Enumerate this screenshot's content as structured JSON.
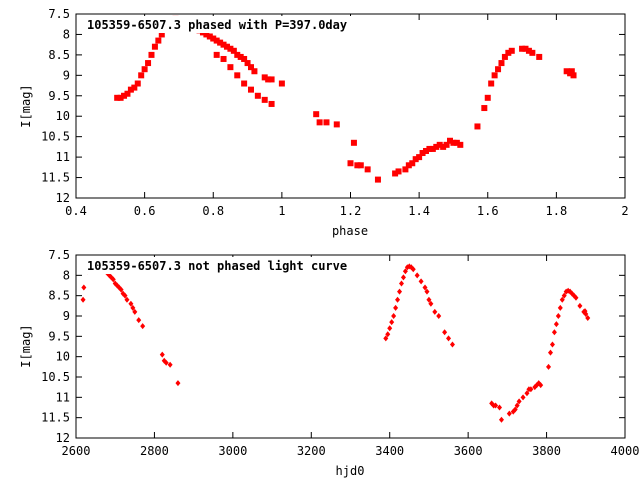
{
  "chart_data": [
    {
      "type": "scatter",
      "title": "105359-6507.3 phased with P=397.0day",
      "xlabel": "phase",
      "ylabel": "I[mag]",
      "xlim": [
        0.4,
        2.0
      ],
      "ylim": [
        12.0,
        7.5
      ],
      "y_inverted": true,
      "grid": false,
      "x_ticks": [
        "0.4",
        "0.6",
        "0.8",
        "1",
        "1.2",
        "1.4",
        "1.6",
        "1.8",
        "2"
      ],
      "y_ticks": [
        "7.5",
        "8",
        "8.5",
        "9",
        "9.5",
        "10",
        "10.5",
        "11",
        "11.5",
        "12"
      ],
      "marker_color": "#ff0000",
      "marker": "filled-square",
      "series": [
        {
          "points": [
            [
              0.52,
              9.55
            ],
            [
              0.53,
              9.55
            ],
            [
              0.54,
              9.5
            ],
            [
              0.55,
              9.45
            ],
            [
              0.56,
              9.35
            ],
            [
              0.57,
              9.3
            ],
            [
              0.58,
              9.2
            ],
            [
              0.59,
              9.0
            ],
            [
              0.6,
              8.85
            ],
            [
              0.61,
              8.7
            ],
            [
              0.62,
              8.5
            ],
            [
              0.63,
              8.3
            ],
            [
              0.64,
              8.15
            ],
            [
              0.65,
              8.0
            ],
            [
              0.66,
              7.85
            ],
            [
              0.67,
              7.75
            ],
            [
              0.68,
              7.65
            ],
            [
              0.69,
              7.62
            ],
            [
              0.7,
              7.63
            ],
            [
              0.71,
              7.65
            ],
            [
              0.72,
              7.7
            ],
            [
              0.73,
              7.75
            ],
            [
              0.74,
              7.8
            ],
            [
              0.75,
              7.85
            ],
            [
              0.76,
              7.9
            ],
            [
              0.77,
              7.95
            ],
            [
              0.78,
              8.0
            ],
            [
              0.79,
              8.05
            ],
            [
              0.8,
              8.1
            ],
            [
              0.81,
              8.15
            ],
            [
              0.82,
              8.2
            ],
            [
              0.83,
              8.25
            ],
            [
              0.84,
              8.3
            ],
            [
              0.85,
              8.35
            ],
            [
              0.86,
              8.4
            ],
            [
              0.87,
              8.5
            ],
            [
              0.88,
              8.55
            ],
            [
              0.89,
              8.6
            ],
            [
              0.9,
              8.7
            ],
            [
              0.91,
              8.8
            ],
            [
              0.92,
              8.9
            ],
            [
              0.95,
              9.05
            ],
            [
              0.96,
              9.1
            ],
            [
              0.97,
              9.1
            ],
            [
              1.0,
              9.2
            ],
            [
              0.81,
              8.5
            ],
            [
              0.83,
              8.6
            ],
            [
              0.85,
              8.8
            ],
            [
              0.87,
              9.0
            ],
            [
              0.89,
              9.2
            ],
            [
              0.91,
              9.35
            ],
            [
              0.93,
              9.5
            ],
            [
              0.95,
              9.6
            ],
            [
              0.97,
              9.7
            ],
            [
              1.1,
              9.95
            ],
            [
              1.11,
              10.15
            ],
            [
              1.13,
              10.15
            ],
            [
              1.16,
              10.2
            ],
            [
              1.21,
              10.65
            ],
            [
              1.2,
              11.15
            ],
            [
              1.22,
              11.2
            ],
            [
              1.23,
              11.2
            ],
            [
              1.25,
              11.3
            ],
            [
              1.28,
              11.55
            ],
            [
              1.33,
              11.4
            ],
            [
              1.34,
              11.35
            ],
            [
              1.36,
              11.3
            ],
            [
              1.37,
              11.2
            ],
            [
              1.38,
              11.15
            ],
            [
              1.39,
              11.05
            ],
            [
              1.4,
              11.0
            ],
            [
              1.41,
              10.9
            ],
            [
              1.42,
              10.85
            ],
            [
              1.43,
              10.8
            ],
            [
              1.44,
              10.8
            ],
            [
              1.45,
              10.75
            ],
            [
              1.46,
              10.7
            ],
            [
              1.47,
              10.75
            ],
            [
              1.48,
              10.7
            ],
            [
              1.49,
              10.6
            ],
            [
              1.5,
              10.65
            ],
            [
              1.51,
              10.65
            ],
            [
              1.52,
              10.7
            ],
            [
              1.57,
              10.25
            ],
            [
              1.59,
              9.8
            ],
            [
              1.6,
              9.55
            ],
            [
              1.61,
              9.2
            ],
            [
              1.62,
              9.0
            ],
            [
              1.63,
              8.85
            ],
            [
              1.64,
              8.7
            ],
            [
              1.65,
              8.55
            ],
            [
              1.66,
              8.45
            ],
            [
              1.67,
              8.4
            ],
            [
              1.7,
              8.35
            ],
            [
              1.71,
              8.35
            ],
            [
              1.72,
              8.4
            ],
            [
              1.73,
              8.45
            ],
            [
              1.75,
              8.55
            ],
            [
              1.83,
              8.9
            ],
            [
              1.84,
              8.95
            ],
            [
              1.85,
              9.0
            ],
            [
              1.845,
              8.9
            ]
          ]
        }
      ]
    },
    {
      "type": "scatter",
      "title": "105359-6507.3 not phased light curve",
      "xlabel": "hjd0",
      "ylabel": "I[mag]",
      "xlim": [
        2600,
        4000
      ],
      "ylim": [
        12.0,
        7.5
      ],
      "y_inverted": true,
      "grid": false,
      "x_ticks": [
        "2600",
        "2800",
        "3000",
        "3200",
        "3400",
        "3600",
        "3800",
        "4000"
      ],
      "y_ticks": [
        "7.5",
        "8",
        "8.5",
        "9",
        "9.5",
        "10",
        "10.5",
        "11",
        "11.5",
        "12"
      ],
      "marker_color": "#ff0000",
      "marker": "filled-diamond",
      "series": [
        {
          "points": [
            [
              2618,
              8.6
            ],
            [
              2620,
              8.3
            ],
            [
              2630,
              7.9
            ],
            [
              2640,
              7.7
            ],
            [
              2645,
              7.65
            ],
            [
              2650,
              7.65
            ],
            [
              2655,
              7.7
            ],
            [
              2660,
              7.75
            ],
            [
              2665,
              7.8
            ],
            [
              2670,
              7.85
            ],
            [
              2675,
              7.9
            ],
            [
              2680,
              7.95
            ],
            [
              2685,
              8.0
            ],
            [
              2690,
              8.05
            ],
            [
              2695,
              8.1
            ],
            [
              2700,
              8.2
            ],
            [
              2705,
              8.25
            ],
            [
              2710,
              8.3
            ],
            [
              2715,
              8.35
            ],
            [
              2720,
              8.45
            ],
            [
              2725,
              8.5
            ],
            [
              2730,
              8.6
            ],
            [
              2740,
              8.7
            ],
            [
              2745,
              8.8
            ],
            [
              2750,
              8.9
            ],
            [
              2760,
              9.1
            ],
            [
              2770,
              9.25
            ],
            [
              2820,
              9.95
            ],
            [
              2825,
              10.1
            ],
            [
              2830,
              10.15
            ],
            [
              2840,
              10.2
            ],
            [
              2860,
              10.65
            ],
            [
              3390,
              9.55
            ],
            [
              3395,
              9.45
            ],
            [
              3400,
              9.3
            ],
            [
              3405,
              9.15
            ],
            [
              3410,
              9.0
            ],
            [
              3415,
              8.8
            ],
            [
              3420,
              8.6
            ],
            [
              3425,
              8.4
            ],
            [
              3430,
              8.2
            ],
            [
              3435,
              8.05
            ],
            [
              3440,
              7.9
            ],
            [
              3445,
              7.8
            ],
            [
              3450,
              7.78
            ],
            [
              3455,
              7.8
            ],
            [
              3460,
              7.85
            ],
            [
              3470,
              8.0
            ],
            [
              3480,
              8.15
            ],
            [
              3490,
              8.3
            ],
            [
              3495,
              8.4
            ],
            [
              3500,
              8.6
            ],
            [
              3505,
              8.7
            ],
            [
              3515,
              8.9
            ],
            [
              3525,
              9.0
            ],
            [
              3540,
              9.4
            ],
            [
              3550,
              9.55
            ],
            [
              3560,
              9.7
            ],
            [
              3660,
              11.15
            ],
            [
              3665,
              11.2
            ],
            [
              3670,
              11.2
            ],
            [
              3680,
              11.25
            ],
            [
              3685,
              11.55
            ],
            [
              3705,
              11.4
            ],
            [
              3715,
              11.35
            ],
            [
              3720,
              11.3
            ],
            [
              3725,
              11.2
            ],
            [
              3730,
              11.1
            ],
            [
              3740,
              11.0
            ],
            [
              3750,
              10.9
            ],
            [
              3755,
              10.8
            ],
            [
              3760,
              10.8
            ],
            [
              3770,
              10.75
            ],
            [
              3775,
              10.7
            ],
            [
              3780,
              10.65
            ],
            [
              3785,
              10.7
            ],
            [
              3805,
              10.25
            ],
            [
              3810,
              9.9
            ],
            [
              3815,
              9.7
            ],
            [
              3820,
              9.4
            ],
            [
              3825,
              9.2
            ],
            [
              3830,
              9.0
            ],
            [
              3835,
              8.8
            ],
            [
              3840,
              8.6
            ],
            [
              3845,
              8.5
            ],
            [
              3850,
              8.4
            ],
            [
              3855,
              8.38
            ],
            [
              3860,
              8.4
            ],
            [
              3865,
              8.45
            ],
            [
              3870,
              8.5
            ],
            [
              3875,
              8.55
            ],
            [
              3885,
              8.75
            ],
            [
              3895,
              8.9
            ],
            [
              3900,
              8.95
            ],
            [
              3905,
              9.05
            ],
            [
              3898,
              8.88
            ]
          ]
        }
      ]
    }
  ]
}
